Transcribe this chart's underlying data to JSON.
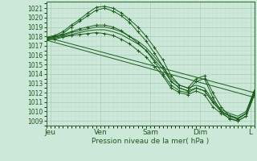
{
  "xlabel": "Pression niveau de la mer( hPa )",
  "ylim": [
    1008.5,
    1021.7
  ],
  "xlim": [
    0,
    100
  ],
  "yticks": [
    1009,
    1010,
    1011,
    1012,
    1013,
    1014,
    1015,
    1016,
    1017,
    1018,
    1019,
    1020,
    1021
  ],
  "xtick_positions": [
    2,
    26,
    50,
    74,
    98
  ],
  "xtick_labels": [
    "Jeu",
    "Ven",
    "Sam",
    "Dim",
    "L"
  ],
  "bg_color": "#cce8d8",
  "grid_major_color": "#aaccbb",
  "grid_minor_color": "#bbddcc",
  "line_color": "#1a5e1a",
  "series": [
    {
      "x": [
        0,
        4,
        8,
        12,
        16,
        20,
        24,
        28,
        32,
        36,
        40,
        44,
        48,
        52,
        56,
        60,
        64,
        68,
        72,
        76,
        80,
        84,
        88,
        92,
        96,
        100
      ],
      "y": [
        1017.9,
        1018.1,
        1018.5,
        1019.2,
        1019.8,
        1020.5,
        1021.1,
        1021.2,
        1021.0,
        1020.5,
        1019.8,
        1019.0,
        1018.0,
        1016.8,
        1015.5,
        1013.8,
        1012.8,
        1012.5,
        1013.5,
        1013.8,
        1012.0,
        1010.5,
        1009.5,
        1009.2,
        1009.8,
        1012.2
      ],
      "marker": true
    },
    {
      "x": [
        0,
        4,
        8,
        12,
        16,
        20,
        24,
        28,
        32,
        36,
        40,
        44,
        48,
        52,
        56,
        60,
        64,
        68,
        72,
        76,
        80,
        84,
        88,
        92,
        96,
        100
      ],
      "y": [
        1017.8,
        1018.0,
        1018.3,
        1019.0,
        1019.6,
        1020.2,
        1020.8,
        1021.0,
        1020.7,
        1020.2,
        1019.5,
        1018.5,
        1017.5,
        1016.2,
        1014.8,
        1013.2,
        1012.5,
        1012.2,
        1013.2,
        1013.5,
        1011.5,
        1010.0,
        1009.2,
        1009.0,
        1009.5,
        1011.8
      ],
      "marker": true
    },
    {
      "x": [
        0,
        4,
        8,
        12,
        16,
        20,
        24,
        28,
        32,
        36,
        40,
        44,
        48,
        52,
        56,
        60,
        64,
        68,
        72,
        76,
        80,
        84,
        88,
        92,
        96,
        100
      ],
      "y": [
        1017.8,
        1017.9,
        1018.1,
        1018.4,
        1018.6,
        1018.8,
        1019.0,
        1019.0,
        1018.8,
        1018.5,
        1018.0,
        1017.5,
        1016.8,
        1015.8,
        1014.8,
        1013.5,
        1012.8,
        1012.5,
        1012.8,
        1012.5,
        1011.2,
        1010.2,
        1009.8,
        1009.5,
        1010.0,
        1012.3
      ],
      "marker": false
    },
    {
      "x": [
        0,
        4,
        8,
        12,
        16,
        20,
        24,
        28,
        32,
        36,
        40,
        44,
        48,
        52,
        56,
        60,
        64,
        68,
        72,
        76,
        80,
        84,
        88,
        92,
        96,
        100
      ],
      "y": [
        1017.7,
        1017.8,
        1018.0,
        1018.2,
        1018.4,
        1018.6,
        1018.7,
        1018.7,
        1018.5,
        1018.2,
        1017.7,
        1017.2,
        1016.5,
        1015.5,
        1014.5,
        1013.2,
        1012.5,
        1012.2,
        1012.5,
        1012.2,
        1011.0,
        1010.0,
        1009.6,
        1009.3,
        1009.8,
        1012.0
      ],
      "marker": false
    },
    {
      "x": [
        0,
        4,
        8,
        12,
        16,
        20,
        24,
        28,
        32,
        36,
        40,
        44,
        48,
        52,
        56,
        60,
        64,
        68,
        72,
        76,
        80,
        84,
        88,
        92,
        96,
        100
      ],
      "y": [
        1017.6,
        1017.7,
        1017.9,
        1018.1,
        1018.2,
        1018.3,
        1018.4,
        1018.3,
        1018.1,
        1017.7,
        1017.2,
        1016.5,
        1015.8,
        1014.8,
        1013.8,
        1012.5,
        1012.0,
        1011.8,
        1012.2,
        1011.8,
        1010.5,
        1009.8,
        1009.3,
        1009.0,
        1009.5,
        1011.8
      ],
      "marker": true
    },
    {
      "x": [
        0,
        4,
        8,
        12,
        16,
        20,
        24,
        28,
        32,
        36,
        40,
        44,
        48,
        52,
        56,
        60,
        64,
        68,
        72,
        76,
        80,
        84,
        88,
        92,
        96,
        100
      ],
      "y": [
        1017.8,
        1018.0,
        1018.2,
        1018.5,
        1018.8,
        1019.0,
        1019.2,
        1019.2,
        1019.0,
        1018.6,
        1018.0,
        1017.3,
        1016.5,
        1015.3,
        1014.0,
        1012.8,
        1012.2,
        1012.0,
        1012.5,
        1012.2,
        1011.0,
        1010.0,
        1009.5,
        1009.2,
        1009.8,
        1012.0
      ],
      "marker": true
    },
    {
      "x": [
        0,
        100
      ],
      "y": [
        1017.9,
        1012.0
      ],
      "marker": false,
      "straight": true
    },
    {
      "x": [
        0,
        100
      ],
      "y": [
        1017.6,
        1011.5
      ],
      "marker": false,
      "straight": true
    }
  ]
}
